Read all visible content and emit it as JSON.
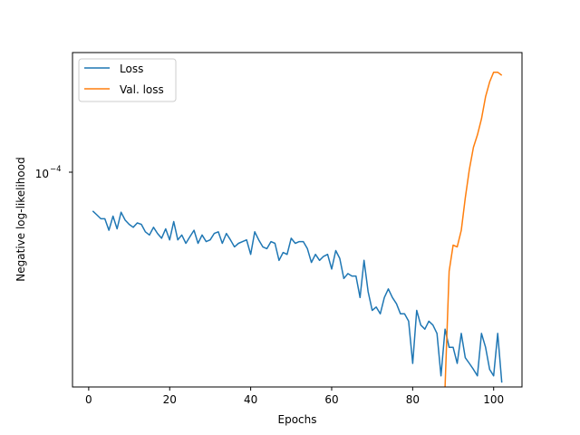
{
  "chart_data": {
    "type": "line",
    "title": "",
    "xlabel": "Epochs",
    "ylabel": "Negative log-likelihood",
    "yscale": "log",
    "xlim": [
      -4,
      107
    ],
    "ylim": [
      1.34e-05,
      0.00039
    ],
    "x_ticks": [
      0,
      20,
      40,
      60,
      80,
      100
    ],
    "y_tick_label": {
      "base": "10",
      "exponent": "−4"
    },
    "grid": false,
    "legend_position": "upper left",
    "colors": {
      "loss": "#1f77b4",
      "val_loss": "#ff7f0e"
    },
    "series": [
      {
        "name": "Loss",
        "x": [
          1,
          2,
          3,
          4,
          5,
          6,
          7,
          8,
          9,
          10,
          11,
          12,
          13,
          14,
          15,
          16,
          17,
          18,
          19,
          20,
          21,
          22,
          23,
          24,
          25,
          26,
          27,
          28,
          29,
          30,
          31,
          32,
          33,
          34,
          35,
          36,
          37,
          38,
          39,
          40,
          41,
          42,
          43,
          44,
          45,
          46,
          47,
          48,
          49,
          50,
          51,
          52,
          53,
          54,
          55,
          56,
          57,
          58,
          59,
          60,
          61,
          62,
          63,
          64,
          65,
          66,
          67,
          68,
          69,
          70,
          71,
          72,
          73,
          74,
          75,
          76,
          77,
          78,
          79,
          80,
          81,
          82,
          83,
          84,
          85,
          86,
          87,
          88,
          89,
          90,
          91,
          92,
          93,
          94,
          95,
          96,
          97,
          98,
          99,
          100,
          101,
          102
        ],
        "values": [
          7.9e-05,
          7.6e-05,
          7.3e-05,
          7.3e-05,
          6.5e-05,
          7.5e-05,
          6.6e-05,
          7.8e-05,
          7.2e-05,
          6.9e-05,
          6.7e-05,
          7e-05,
          6.9e-05,
          6.4e-05,
          6.2e-05,
          6.7e-05,
          6.3e-05,
          6e-05,
          6.6e-05,
          5.9e-05,
          7.1e-05,
          5.9e-05,
          6.2e-05,
          5.7e-05,
          6.1e-05,
          6.5e-05,
          5.7e-05,
          6.2e-05,
          5.8e-05,
          5.9e-05,
          6.3e-05,
          6.4e-05,
          5.7e-05,
          6.3e-05,
          5.9e-05,
          5.5e-05,
          5.7e-05,
          5.8e-05,
          5.9e-05,
          5.1e-05,
          6.4e-05,
          5.9e-05,
          5.5e-05,
          5.4e-05,
          5.8e-05,
          5.7e-05,
          4.8e-05,
          5.2e-05,
          5.1e-05,
          6e-05,
          5.7e-05,
          5.8e-05,
          5.8e-05,
          5.4e-05,
          4.7e-05,
          5.1e-05,
          4.8e-05,
          5e-05,
          5.1e-05,
          4.4e-05,
          5.3e-05,
          4.9e-05,
          4e-05,
          4.2e-05,
          4.1e-05,
          4.1e-05,
          3.3e-05,
          4.8e-05,
          3.5e-05,
          2.9e-05,
          3e-05,
          2.8e-05,
          3.3e-05,
          3.6e-05,
          3.3e-05,
          3.1e-05,
          2.8e-05,
          2.8e-05,
          2.6e-05,
          1.7e-05,
          2.9e-05,
          2.5e-05,
          2.4e-05,
          2.6e-05,
          2.5e-05,
          2.3e-05,
          1.5e-05,
          2.4e-05,
          2e-05,
          2e-05,
          1.7e-05,
          2.3e-05,
          1.8e-05,
          1.7e-05,
          1.6e-05,
          1.5e-05,
          2.3e-05,
          2e-05,
          1.6e-05,
          1.5e-05,
          2.3e-05,
          1.4e-05
        ]
      },
      {
        "name": "Val. loss",
        "x": [
          88,
          89,
          90,
          91,
          92,
          93,
          94,
          95,
          96,
          97,
          98,
          99,
          100,
          101,
          102
        ],
        "values": [
          1.34e-05,
          4.3e-05,
          5.6e-05,
          5.5e-05,
          6.5e-05,
          9e-05,
          0.00012,
          0.00015,
          0.00017,
          0.0002,
          0.00025,
          0.00029,
          0.00032,
          0.00032,
          0.00031
        ]
      }
    ]
  }
}
